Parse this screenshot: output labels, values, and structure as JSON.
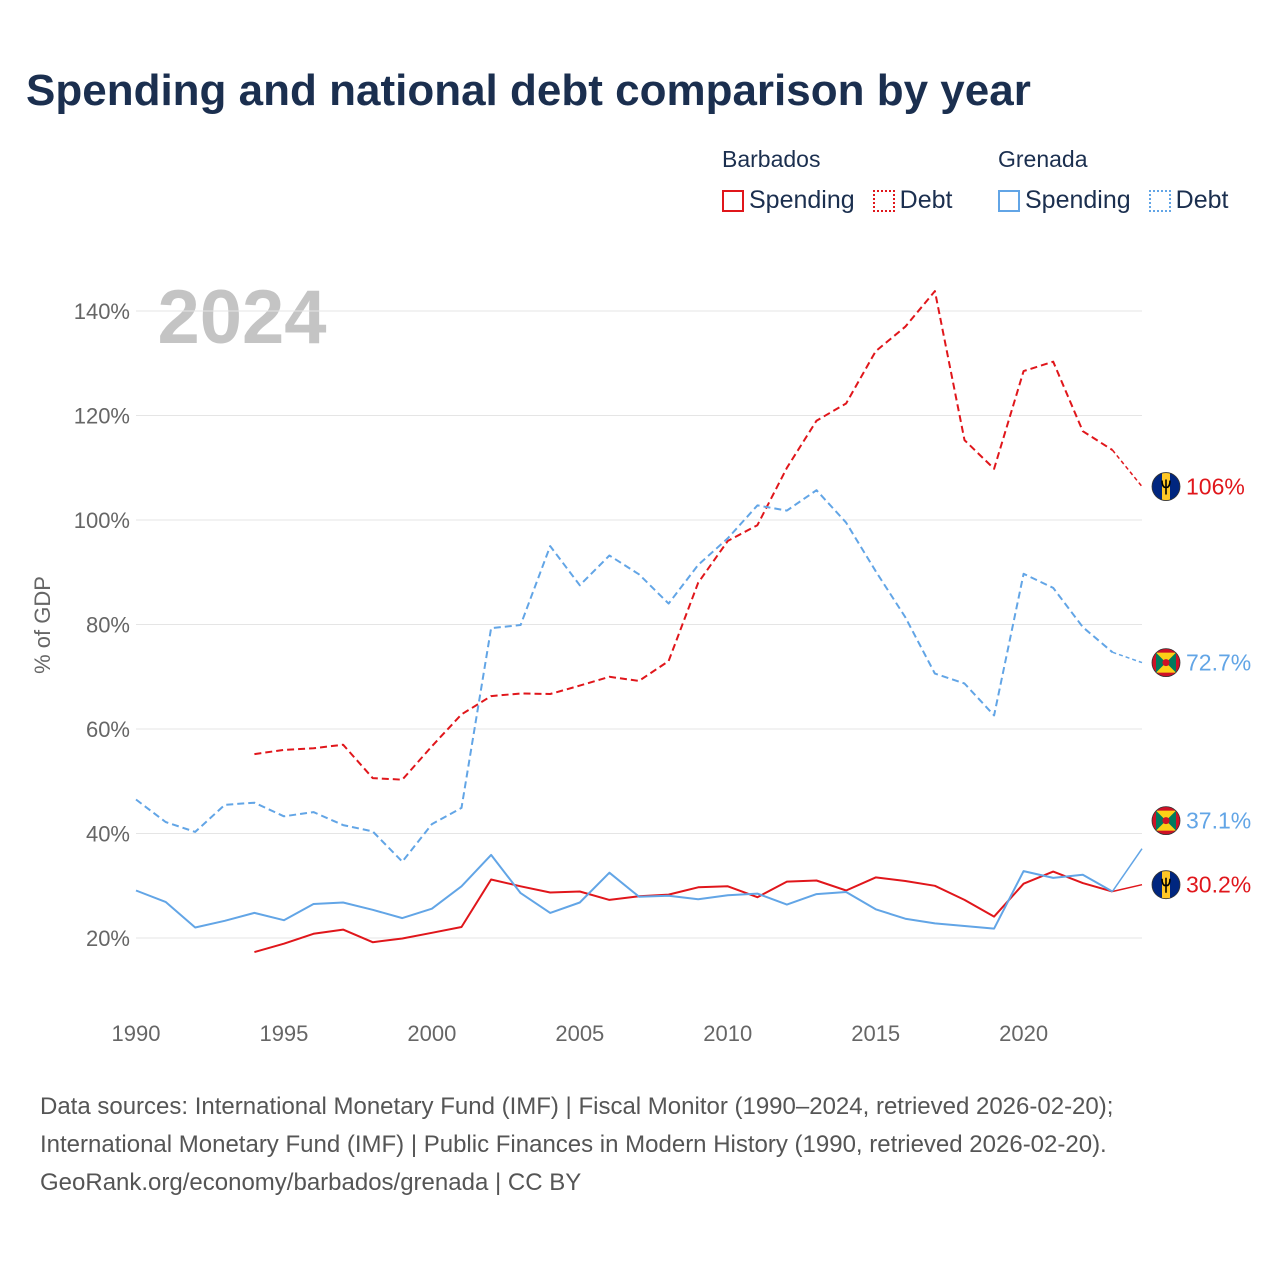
{
  "title": "Spending and national debt comparison by year",
  "legend": {
    "groups": [
      {
        "name": "Barbados",
        "spending_label": "Spending",
        "debt_label": "Debt",
        "color": "#e0161b"
      },
      {
        "name": "Grenada",
        "spending_label": "Spending",
        "debt_label": "Debt",
        "color": "#62a5e6"
      }
    ]
  },
  "year_watermark": "2024",
  "footer": {
    "line1": "Data sources: International Monetary Fund (IMF) | Fiscal Monitor (1990–2024, retrieved 2026-02-20);",
    "line2": "International Monetary Fund (IMF) | Public Finances in Modern History (1990, retrieved 2026-02-20).",
    "line3": "GeoRank.org/economy/barbados/grenada | CC BY"
  },
  "chart_data": {
    "type": "line",
    "title": "Spending and national debt comparison by year",
    "xlabel": "",
    "ylabel": "% of GDP",
    "xlim": [
      1990,
      2024
    ],
    "ylim": [
      10,
      145
    ],
    "yticks": [
      20,
      40,
      60,
      80,
      100,
      120,
      140
    ],
    "ytick_labels": [
      "20%",
      "40%",
      "60%",
      "80%",
      "100%",
      "120%",
      "140%"
    ],
    "xticks": [
      1990,
      1995,
      2000,
      2005,
      2010,
      2015,
      2020
    ],
    "xtick_labels": [
      "1990",
      "1995",
      "2000",
      "2005",
      "2010",
      "2015",
      "2020"
    ],
    "grid": true,
    "series": [
      {
        "name": "Barbados Debt",
        "country": "Barbados",
        "measure": "Debt",
        "style": "dashed",
        "color": "#e0161b",
        "x": [
          1994,
          1995,
          1996,
          1997,
          1998,
          1999,
          2000,
          2001,
          2002,
          2003,
          2004,
          2005,
          2006,
          2007,
          2008,
          2009,
          2010,
          2011,
          2012,
          2013,
          2014,
          2015,
          2016,
          2017,
          2018,
          2019,
          2020,
          2021,
          2022,
          2023,
          2024
        ],
        "values": [
          55.2,
          56,
          56.3,
          57,
          50.6,
          50.3,
          56.7,
          62.8,
          66.3,
          66.8,
          66.7,
          68.3,
          70,
          69.2,
          73,
          88,
          96,
          99,
          110,
          119,
          122.3,
          132.3,
          137,
          143.8,
          115.3,
          109.8,
          128.5,
          130.3,
          117,
          113.4,
          106.4
        ],
        "end_label": "106%"
      },
      {
        "name": "Grenada Debt",
        "country": "Grenada",
        "measure": "Debt",
        "style": "dashed",
        "color": "#62a5e6",
        "x": [
          1990,
          1991,
          1992,
          1993,
          1994,
          1995,
          1996,
          1997,
          1998,
          1999,
          2000,
          2001,
          2002,
          2003,
          2004,
          2005,
          2006,
          2007,
          2008,
          2009,
          2010,
          2011,
          2012,
          2013,
          2014,
          2015,
          2016,
          2017,
          2018,
          2019,
          2020,
          2021,
          2022,
          2023,
          2024
        ],
        "values": [
          46.5,
          42.2,
          40.3,
          45.5,
          45.9,
          43.3,
          44.1,
          41.6,
          40.4,
          34.6,
          41.8,
          44.9,
          79.3,
          79.9,
          95,
          87.5,
          93.2,
          89.6,
          84,
          91.4,
          96.5,
          102.8,
          101.8,
          105.7,
          99.5,
          90.2,
          81.4,
          70.6,
          68.7,
          62.6,
          89.7,
          87,
          79.5,
          74.7,
          72.7
        ],
        "end_label": "72.7%"
      },
      {
        "name": "Barbados Spending",
        "country": "Barbados",
        "measure": "Spending",
        "style": "solid",
        "color": "#e0161b",
        "x": [
          1994,
          1995,
          1996,
          1997,
          1998,
          1999,
          2000,
          2001,
          2002,
          2003,
          2004,
          2005,
          2006,
          2007,
          2008,
          2009,
          2010,
          2011,
          2012,
          2013,
          2014,
          2015,
          2016,
          2017,
          2018,
          2019,
          2020,
          2021,
          2022,
          2023,
          2024
        ],
        "values": [
          17.3,
          18.9,
          20.8,
          21.6,
          19.2,
          19.9,
          21,
          22.1,
          31.2,
          29.9,
          28.7,
          28.9,
          27.3,
          28,
          28.3,
          29.7,
          29.9,
          27.8,
          30.8,
          31,
          29.1,
          31.6,
          30.9,
          30,
          27.3,
          24.1,
          30.4,
          32.7,
          30.5,
          28.9,
          30.2
        ],
        "end_label": "30.2%"
      },
      {
        "name": "Grenada Spending",
        "country": "Grenada",
        "measure": "Spending",
        "style": "solid",
        "color": "#62a5e6",
        "x": [
          1990,
          1991,
          1992,
          1993,
          1994,
          1995,
          1996,
          1997,
          1998,
          1999,
          2000,
          2001,
          2002,
          2003,
          2004,
          2005,
          2006,
          2007,
          2008,
          2009,
          2010,
          2011,
          2012,
          2013,
          2014,
          2015,
          2016,
          2017,
          2018,
          2019,
          2020,
          2021,
          2022,
          2023,
          2024
        ],
        "values": [
          29.1,
          26.9,
          22,
          23.3,
          24.8,
          23.4,
          26.5,
          26.8,
          25.4,
          23.8,
          25.6,
          29.9,
          35.9,
          28.6,
          24.8,
          26.8,
          32.5,
          27.9,
          28.1,
          27.4,
          28.2,
          28.5,
          26.4,
          28.4,
          28.8,
          25.5,
          23.7,
          22.8,
          22.3,
          21.8,
          32.8,
          31.5,
          32.1,
          28.9,
          37.1
        ],
        "end_label": "37.1%"
      }
    ]
  }
}
